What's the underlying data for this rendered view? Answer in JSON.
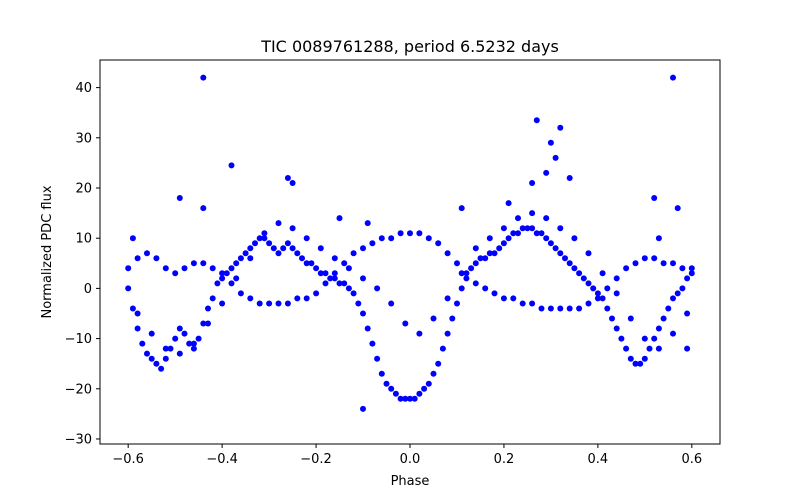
{
  "chart_data": {
    "type": "scatter",
    "title": "TIC 0089761288, period 6.5232 days",
    "xlabel": "Phase",
    "ylabel": "Normalized PDC flux",
    "xlim": [
      -0.66,
      0.66
    ],
    "ylim": [
      -31,
      45.5
    ],
    "x_ticks": [
      -0.6,
      -0.4,
      -0.2,
      0.0,
      0.2,
      0.4,
      0.6
    ],
    "x_tick_labels": [
      "−0.6",
      "−0.4",
      "−0.2",
      "0.0",
      "0.2",
      "0.4",
      "0.6"
    ],
    "y_ticks": [
      -30,
      -20,
      -10,
      0,
      10,
      20,
      30,
      40
    ],
    "y_tick_labels": [
      "−30",
      "−20",
      "−10",
      "0",
      "10",
      "20",
      "30",
      "40"
    ],
    "grid": false,
    "legend": "none",
    "marker_color": "#0000ff",
    "series": [
      {
        "x": [
          -0.6,
          -0.59,
          -0.58,
          -0.57,
          -0.56,
          -0.55,
          -0.54,
          -0.53,
          -0.52,
          -0.51,
          -0.5,
          -0.49,
          -0.48,
          -0.47,
          -0.46,
          -0.45,
          -0.44,
          -0.43,
          -0.42,
          -0.41,
          -0.4,
          -0.39,
          -0.38,
          -0.37,
          -0.36,
          -0.35,
          -0.34,
          -0.33,
          -0.32,
          -0.31,
          -0.3,
          -0.29,
          -0.28,
          -0.27,
          -0.26,
          -0.25,
          -0.24,
          -0.23,
          -0.22,
          -0.21,
          -0.2,
          -0.19,
          -0.18,
          -0.17,
          -0.16,
          -0.15,
          -0.14,
          -0.13,
          -0.12,
          -0.11,
          -0.1,
          -0.09,
          -0.08,
          -0.07,
          -0.06,
          -0.05,
          -0.04,
          -0.03,
          -0.02,
          -0.01,
          0.0,
          0.01,
          0.02,
          0.03,
          0.04,
          0.05,
          0.06,
          0.07,
          0.08,
          0.09,
          0.1,
          0.11,
          0.12,
          0.13,
          0.14,
          0.15,
          0.16,
          0.17,
          0.18,
          0.19,
          0.2,
          0.21,
          0.22,
          0.23,
          0.24,
          0.25,
          0.26,
          0.27,
          0.28,
          0.29,
          0.3,
          0.31,
          0.32,
          0.33,
          0.34,
          0.35,
          0.36,
          0.37,
          0.38,
          0.39,
          0.4,
          0.41,
          0.42,
          0.43,
          0.44,
          0.45,
          0.46,
          0.47,
          0.48,
          0.49,
          0.5,
          0.51,
          0.52,
          0.53,
          0.54,
          0.55,
          0.56,
          0.57,
          0.58,
          0.59,
          0.6
        ],
        "y": [
          0,
          -4,
          -8,
          -11,
          -13,
          -14,
          -15,
          -16,
          -14,
          -12,
          -10,
          -8,
          -9,
          -11,
          -12,
          -10,
          -7,
          -4,
          -2,
          1,
          2,
          3,
          4,
          5,
          6,
          7,
          8,
          9,
          10,
          10,
          9,
          8,
          7,
          8,
          9,
          8,
          7,
          6,
          5,
          5,
          4,
          3,
          3,
          2,
          2,
          1,
          1,
          0,
          -1,
          -3,
          -5,
          -8,
          -11,
          -14,
          -17,
          -19,
          -20,
          -21,
          -22,
          -22,
          -22,
          -22,
          -21,
          -20,
          -19,
          -17,
          -15,
          -12,
          -9,
          -6,
          -3,
          0,
          2,
          4,
          5,
          6,
          6,
          7,
          7,
          8,
          9,
          10,
          11,
          11,
          12,
          12,
          12,
          11,
          11,
          10,
          9,
          8,
          7,
          6,
          5,
          4,
          3,
          2,
          1,
          0,
          -1,
          -2,
          -4,
          -6,
          -8,
          -10,
          -12,
          -14,
          -15,
          -15,
          -14,
          -12,
          -10,
          -8,
          -6,
          -4,
          -2,
          -1,
          0,
          2,
          3
        ]
      },
      {
        "x": [
          -0.6,
          -0.58,
          -0.56,
          -0.54,
          -0.52,
          -0.5,
          -0.48,
          -0.46,
          -0.44,
          -0.42,
          -0.4,
          -0.38,
          -0.36,
          -0.34,
          -0.32,
          -0.3,
          -0.28,
          -0.26,
          -0.24,
          -0.22,
          -0.2,
          -0.18,
          -0.16,
          -0.14,
          -0.12,
          -0.1,
          -0.08,
          -0.06,
          -0.04,
          -0.02,
          0.0,
          0.02,
          0.04,
          0.06,
          0.08,
          0.1,
          0.12,
          0.14,
          0.16,
          0.18,
          0.2,
          0.22,
          0.24,
          0.26,
          0.28,
          0.3,
          0.32,
          0.34,
          0.36,
          0.38,
          0.4,
          0.42,
          0.44,
          0.46,
          0.48,
          0.5,
          0.52,
          0.54,
          0.56,
          0.58,
          0.6
        ],
        "y": [
          4,
          6,
          7,
          6,
          4,
          3,
          4,
          5,
          5,
          4,
          3,
          1,
          -1,
          -2,
          -3,
          -3,
          -3,
          -3,
          -2,
          -2,
          -1,
          1,
          3,
          5,
          7,
          8,
          9,
          10,
          10,
          11,
          11,
          11,
          10,
          9,
          7,
          5,
          3,
          1,
          0,
          -1,
          -2,
          -2,
          -3,
          -3,
          -4,
          -4,
          -4,
          -4,
          -4,
          -3,
          -2,
          0,
          2,
          4,
          5,
          6,
          6,
          5,
          5,
          4,
          4
        ]
      },
      {
        "x": [
          -0.58,
          -0.55,
          -0.52,
          -0.49,
          -0.46,
          -0.43,
          -0.4,
          -0.37,
          -0.34,
          -0.31,
          -0.28,
          -0.25,
          -0.22,
          -0.19,
          -0.16,
          -0.13,
          -0.1,
          -0.07,
          -0.04,
          -0.01,
          0.02,
          0.05,
          0.08,
          0.11,
          0.14,
          0.17,
          0.2,
          0.23,
          0.26,
          0.29,
          0.32,
          0.35,
          0.38,
          0.41,
          0.44,
          0.47,
          0.5,
          0.53,
          0.56,
          0.59
        ],
        "y": [
          -5,
          -9,
          -12,
          -13,
          -11,
          -7,
          -3,
          2,
          6,
          11,
          13,
          12,
          10,
          8,
          6,
          4,
          2,
          0,
          -3,
          -7,
          -9,
          -6,
          -2,
          3,
          8,
          10,
          12,
          14,
          15,
          14,
          12,
          10,
          7,
          3,
          -1,
          -6,
          -10,
          -12,
          -9,
          -5
        ]
      },
      {
        "x": [
          -0.44,
          0.56,
          0.27,
          0.32,
          0.3,
          0.31,
          -0.38,
          -0.49,
          -0.44,
          0.52,
          0.57,
          -0.15,
          0.29,
          0.34,
          0.21,
          -0.26,
          -0.25,
          0.26,
          -0.09,
          0.11,
          -0.59,
          0.59,
          0.53,
          -0.1
        ],
        "y": [
          42,
          42,
          33.5,
          32,
          29,
          26,
          24.5,
          18,
          16,
          18,
          16,
          14,
          23,
          22,
          17,
          22,
          21,
          21,
          13,
          16,
          10,
          -12,
          10,
          -24
        ]
      }
    ]
  }
}
